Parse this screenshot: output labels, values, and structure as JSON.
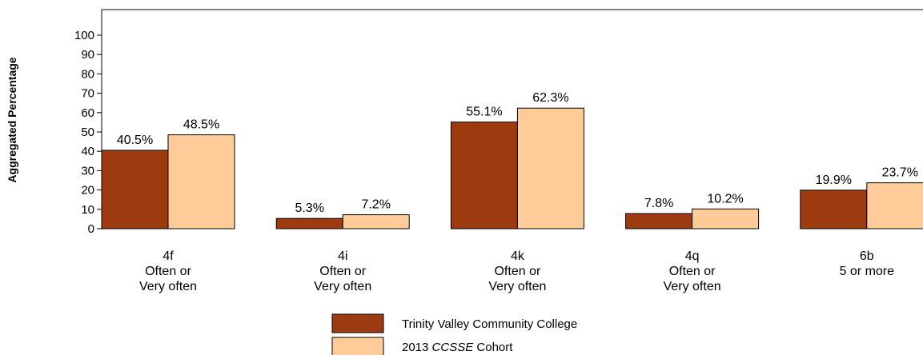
{
  "chart_data": {
    "type": "bar",
    "ylabel": "Aggregated Percentage",
    "ylim": [
      0,
      100
    ],
    "yticks": [
      0,
      10,
      20,
      30,
      40,
      50,
      60,
      70,
      80,
      90,
      100
    ],
    "categories": [
      [
        "4f",
        "Often or",
        "Very often"
      ],
      [
        "4i",
        "Often or",
        "Very often"
      ],
      [
        "4k",
        "Often or",
        "Very often"
      ],
      [
        "4q",
        "Often or",
        "Very often"
      ],
      [
        "6b",
        "5 or more"
      ]
    ],
    "series": [
      {
        "name": "Trinity Valley Community College",
        "color": "#9E3A10",
        "values": [
          40.5,
          5.3,
          55.1,
          7.8,
          19.9
        ],
        "labels": [
          "40.5%",
          "5.3%",
          "55.1%",
          "7.8%",
          "19.9%"
        ]
      },
      {
        "name": "2013 CCSSE Cohort",
        "name_parts": [
          "2013 ",
          "CCSSE",
          " Cohort"
        ],
        "color": "#FFCC99",
        "values": [
          48.5,
          7.2,
          62.3,
          10.2,
          23.7
        ],
        "labels": [
          "48.5%",
          "7.2%",
          "62.3%",
          "10.2%",
          "23.7%"
        ]
      }
    ],
    "grid": false,
    "legend_position": "bottom-center"
  }
}
